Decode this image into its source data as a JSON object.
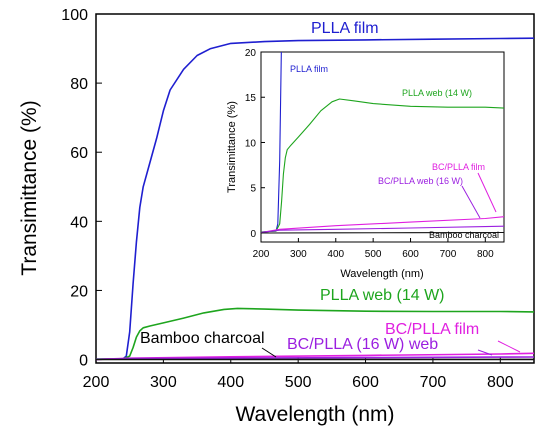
{
  "chart_data": [
    {
      "type": "line",
      "title": "",
      "xlabel": "Wavelength (nm)",
      "ylabel": "Transimittance (%)",
      "xlim": [
        200,
        850
      ],
      "ylim": [
        -1,
        100
      ],
      "xticks": [
        200,
        300,
        400,
        500,
        600,
        700,
        800
      ],
      "yticks": [
        0,
        20,
        40,
        60,
        80,
        100
      ],
      "grid": false,
      "legend": "none",
      "series": [
        {
          "name": "PLLA film",
          "color": "#1f1fd0",
          "x": [
            200,
            240,
            245,
            250,
            255,
            260,
            265,
            270,
            280,
            290,
            300,
            310,
            330,
            350,
            370,
            400,
            450,
            500,
            600,
            700,
            800,
            850
          ],
          "y": [
            0.1,
            0.2,
            1.0,
            8.0,
            22.0,
            34.0,
            44.0,
            50.0,
            57.0,
            64.0,
            72.0,
            78.0,
            84.0,
            88.0,
            90.0,
            91.5,
            92.0,
            92.3,
            92.5,
            92.7,
            92.9,
            93.0
          ]
        },
        {
          "name": "PLLA web (14 W)",
          "color": "#1ea51e",
          "x": [
            200,
            240,
            250,
            255,
            260,
            265,
            270,
            280,
            300,
            330,
            360,
            390,
            410,
            450,
            500,
            600,
            700,
            800,
            850
          ],
          "y": [
            0.1,
            0.2,
            1.0,
            3.5,
            6.5,
            8.3,
            9.2,
            9.7,
            10.6,
            12.0,
            13.5,
            14.5,
            14.8,
            14.6,
            14.3,
            14.0,
            13.9,
            13.9,
            13.8
          ]
        },
        {
          "name": "BC/PLLA film",
          "color": "#e020e0",
          "x": [
            200,
            250,
            400,
            600,
            800,
            850
          ],
          "y": [
            0.05,
            0.4,
            0.8,
            1.2,
            1.6,
            1.8
          ]
        },
        {
          "name": "BC/PLLA (16 W) web",
          "color": "#9b1fe0",
          "x": [
            200,
            250,
            400,
            600,
            800,
            850
          ],
          "y": [
            0.05,
            0.3,
            0.4,
            0.55,
            0.7,
            0.75
          ]
        },
        {
          "name": "Bamboo charcoal",
          "color": "#111111",
          "x": [
            200,
            400,
            600,
            850
          ],
          "y": [
            0.0,
            0.02,
            0.03,
            0.05
          ]
        }
      ],
      "labels": [
        {
          "text": "PLLA film",
          "color": "#1f1fd0"
        },
        {
          "text": "PLLA web (14 W)",
          "color": "#1ea51e"
        },
        {
          "text": "BC/PLLA film",
          "color": "#e020e0"
        },
        {
          "text": "BC/PLLA (16 W) web",
          "color": "#9b1fe0"
        },
        {
          "text": "Bamboo charcoal",
          "color": "#000000"
        }
      ]
    },
    {
      "type": "line",
      "title": "",
      "xlabel": "Wavelength (nm)",
      "ylabel": "Transimittance (%)",
      "xlim": [
        200,
        850
      ],
      "ylim": [
        -1,
        20
      ],
      "xticks": [
        200,
        300,
        400,
        500,
        600,
        700,
        800
      ],
      "yticks": [
        0,
        5,
        10,
        15,
        20
      ],
      "grid": false,
      "legend": "none",
      "series": [
        {
          "name": "PLLA film",
          "color": "#1f1fd0",
          "x": [
            200,
            240,
            245,
            250,
            255
          ],
          "y": [
            0.1,
            0.2,
            1.0,
            8.0,
            22.0
          ]
        },
        {
          "name": "PLLA web (14 W)",
          "color": "#1ea51e",
          "x": [
            200,
            240,
            250,
            255,
            260,
            265,
            270,
            280,
            300,
            330,
            360,
            390,
            410,
            450,
            500,
            600,
            700,
            800,
            850
          ],
          "y": [
            0.1,
            0.2,
            1.0,
            3.5,
            6.5,
            8.3,
            9.2,
            9.7,
            10.6,
            12.0,
            13.5,
            14.5,
            14.8,
            14.6,
            14.3,
            14.0,
            13.9,
            13.9,
            13.8
          ]
        },
        {
          "name": "BC/PLLA film",
          "color": "#e020e0",
          "x": [
            200,
            250,
            400,
            600,
            800,
            850
          ],
          "y": [
            0.05,
            0.4,
            0.8,
            1.2,
            1.6,
            1.8
          ]
        },
        {
          "name": "BC/PLLA web (16 W)",
          "color": "#9b1fe0",
          "x": [
            200,
            250,
            400,
            600,
            800,
            850
          ],
          "y": [
            0.05,
            0.3,
            0.4,
            0.55,
            0.7,
            0.75
          ]
        },
        {
          "name": "Bamboo charcoal",
          "color": "#111111",
          "x": [
            200,
            400,
            600,
            850
          ],
          "y": [
            0.0,
            0.02,
            0.03,
            0.05
          ]
        }
      ],
      "labels": [
        {
          "text": "PLLA film",
          "color": "#1f1fd0"
        },
        {
          "text": "PLLA web (14 W)",
          "color": "#1ea51e"
        },
        {
          "text": "BC/PLLA film",
          "color": "#e020e0"
        },
        {
          "text": "BC/PLLA web (16 W)",
          "color": "#9b1fe0"
        },
        {
          "text": "Bamboo charcoal",
          "color": "#000000"
        }
      ]
    }
  ]
}
